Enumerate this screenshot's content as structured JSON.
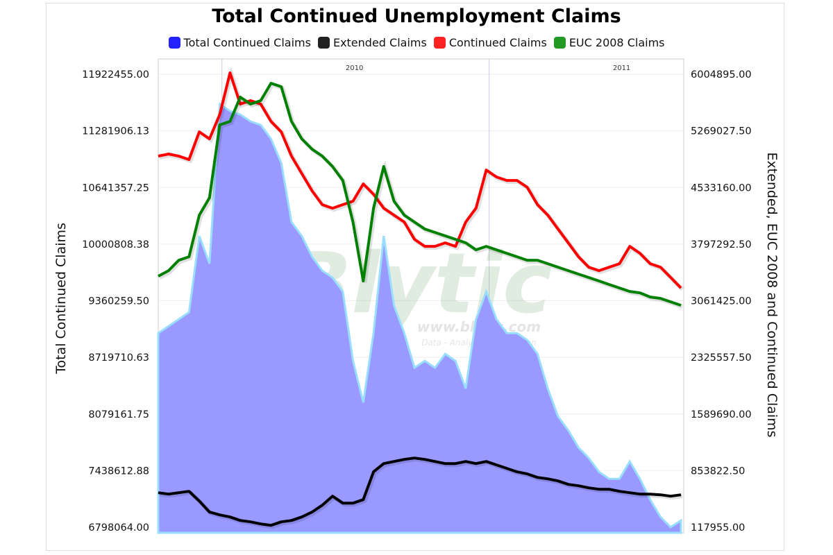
{
  "chart_data": {
    "type": "line",
    "title": "Total Continued Unemployment Claims",
    "legend": [
      "Total Continued Claims",
      "Extended Claims",
      "Continued Claims",
      "EUC 2008 Claims"
    ],
    "legend_position": "top",
    "grid": true,
    "x_tick_labels": [
      "2010",
      "2011"
    ],
    "x_ticks": [
      "2010-01-01",
      "2011-01-01"
    ],
    "x": [
      "2009-10-06",
      "2009-10-20",
      "2009-11-03",
      "2009-11-17",
      "2009-12-01",
      "2009-12-15",
      "2009-12-29",
      "2010-01-12",
      "2010-01-26",
      "2010-02-09",
      "2010-02-23",
      "2010-03-09",
      "2010-03-23",
      "2010-04-06",
      "2010-04-20",
      "2010-05-04",
      "2010-05-18",
      "2010-06-01",
      "2010-06-15",
      "2010-06-29",
      "2010-07-13",
      "2010-07-27",
      "2010-08-10",
      "2010-08-24",
      "2010-09-07",
      "2010-09-21",
      "2010-10-05",
      "2010-10-19",
      "2010-11-02",
      "2010-11-16",
      "2010-11-30",
      "2010-12-14",
      "2010-12-28",
      "2011-01-11",
      "2011-01-25",
      "2011-02-08",
      "2011-02-22",
      "2011-03-08",
      "2011-03-22",
      "2011-04-05",
      "2011-04-19",
      "2011-05-03",
      "2011-05-17",
      "2011-05-31",
      "2011-06-14",
      "2011-06-28",
      "2011-07-12",
      "2011-07-26",
      "2011-08-09",
      "2011-08-23",
      "2011-09-06",
      "2011-09-20"
    ],
    "x_range": [
      "2009-10-06",
      "2011-09-20"
    ],
    "y_left": {
      "label": "Total Continued Claims",
      "range": [
        6798064.0,
        11922455.0
      ],
      "tick_labels": [
        "6798064.00",
        "7438612.88",
        "8079161.75",
        "8719710.63",
        "9360259.50",
        "10000808.38",
        "10641357.25",
        "11281906.13",
        "11922455.00"
      ]
    },
    "y_right": {
      "label": "Extended, EUC 2008 and Continued Claims",
      "range": [
        117955.0,
        6004895.0
      ],
      "tick_labels": [
        "117955.00",
        "853822.50",
        "1589690.00",
        "2325557.50",
        "3061425.00",
        "3797292.50",
        "4533160.00",
        "5269027.50",
        "6004895.00"
      ]
    },
    "series": [
      {
        "name": "Total Continued Claims",
        "axis": "left",
        "kind": "area",
        "color": "#9999ff",
        "edge_color": "#99ddff",
        "values": [
          8994000,
          9073000,
          9151000,
          9230000,
          10093000,
          9779000,
          11585000,
          11506000,
          11467000,
          11389000,
          11349000,
          11192000,
          10918000,
          10250000,
          10093000,
          9858000,
          9701000,
          9622000,
          9465000,
          8680000,
          8209000,
          8994000,
          10093000,
          9308000,
          8994000,
          8602000,
          8680000,
          8602000,
          8759000,
          8680000,
          8366000,
          9151000,
          9465000,
          9151000,
          8994000,
          8994000,
          8916000,
          8759000,
          8366000,
          8052000,
          7895000,
          7699000,
          7581000,
          7424000,
          7346000,
          7346000,
          7542000,
          7346000,
          7110000,
          6914000,
          6800000,
          6875000
        ]
      },
      {
        "name": "Extended Claims",
        "axis": "right",
        "kind": "line",
        "color": "#000000",
        "values": [
          567000,
          549000,
          567000,
          585000,
          459000,
          315000,
          278000,
          251000,
          206000,
          188000,
          161000,
          143000,
          188000,
          206000,
          251000,
          315000,
          405000,
          522000,
          432000,
          432000,
          477000,
          838000,
          946000,
          973000,
          1000000,
          1018000,
          1000000,
          973000,
          946000,
          946000,
          973000,
          946000,
          973000,
          928000,
          883000,
          838000,
          811000,
          765000,
          747000,
          720000,
          675000,
          657000,
          630000,
          612000,
          612000,
          585000,
          567000,
          549000,
          549000,
          540000,
          522000,
          540000
        ]
      },
      {
        "name": "Continued Claims",
        "axis": "right",
        "kind": "line",
        "color": "#ff0000",
        "values": [
          4941000,
          4968000,
          4941000,
          4896000,
          5256000,
          5166000,
          5482000,
          6023000,
          5617000,
          5662000,
          5617000,
          5392000,
          5256000,
          4941000,
          4715000,
          4490000,
          4310000,
          4264000,
          4310000,
          4355000,
          4580000,
          4445000,
          4264000,
          4174000,
          4084000,
          3859000,
          3768000,
          3768000,
          3814000,
          3768000,
          4084000,
          4264000,
          4760000,
          4670000,
          4625000,
          4625000,
          4535000,
          4310000,
          4174000,
          3994000,
          3814000,
          3633000,
          3498000,
          3453000,
          3498000,
          3543000,
          3768000,
          3678000,
          3543000,
          3498000,
          3363000,
          3227000
        ]
      },
      {
        "name": "EUC 2008 Claims",
        "axis": "right",
        "kind": "line",
        "color": "#008000",
        "values": [
          3381000,
          3453000,
          3588000,
          3633000,
          4174000,
          4400000,
          5347000,
          5392000,
          5707000,
          5617000,
          5662000,
          5888000,
          5843000,
          5392000,
          5166000,
          5031000,
          4941000,
          4806000,
          4625000,
          4084000,
          3318000,
          4264000,
          4806000,
          4355000,
          4174000,
          4084000,
          3994000,
          3949000,
          3904000,
          3859000,
          3814000,
          3723000,
          3768000,
          3723000,
          3678000,
          3633000,
          3588000,
          3588000,
          3543000,
          3498000,
          3453000,
          3408000,
          3363000,
          3318000,
          3272000,
          3227000,
          3182000,
          3164000,
          3110000,
          3092000,
          3047000,
          3002000
        ]
      }
    ],
    "legend_colors": [
      "#2222ff",
      "#222222",
      "#ff2222",
      "#229922"
    ],
    "watermark": {
      "logo": "Blytic",
      "url": "www.blytic.com",
      "tagline": "Data - Analysis - Discussion"
    }
  }
}
